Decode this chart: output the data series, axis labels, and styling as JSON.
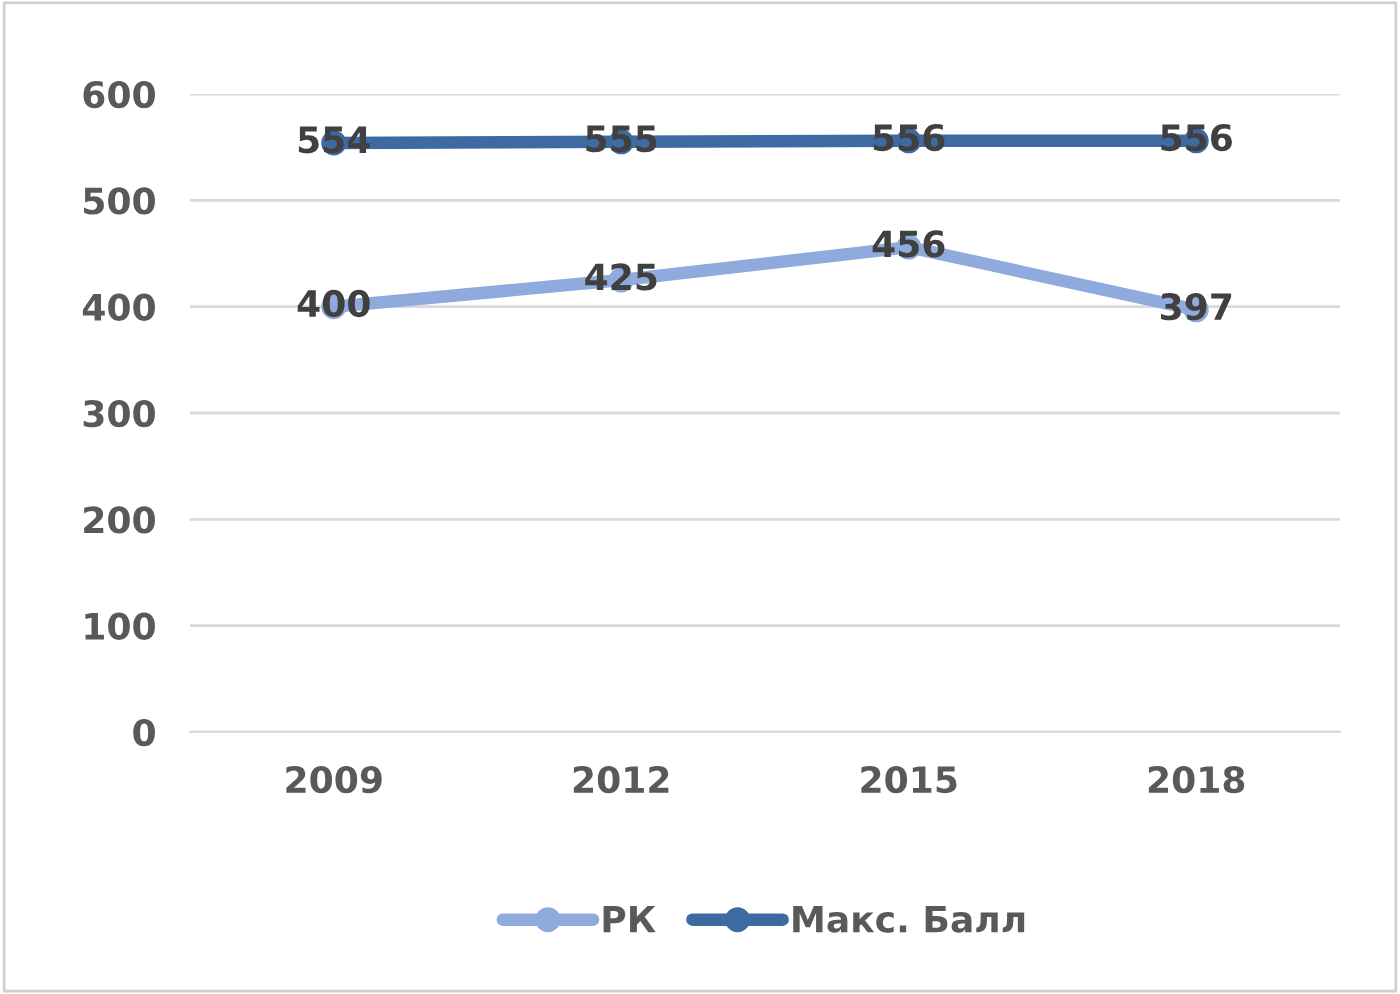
{
  "chart_data": {
    "type": "line",
    "categories": [
      "2009",
      "2012",
      "2015",
      "2018"
    ],
    "series": [
      {
        "name": "РК",
        "color": "#8faadc",
        "values": [
          400,
          425,
          456,
          397
        ]
      },
      {
        "name": "Макс. Балл",
        "color": "#3e6aa2",
        "values": [
          554,
          555,
          556,
          556
        ]
      }
    ],
    "ylim": [
      0,
      600
    ],
    "yticks": [
      0,
      100,
      200,
      300,
      400,
      500,
      600
    ],
    "grid": "y",
    "legend": "bottom",
    "marker": "circle",
    "line_style": "solid",
    "data_labels": true
  }
}
